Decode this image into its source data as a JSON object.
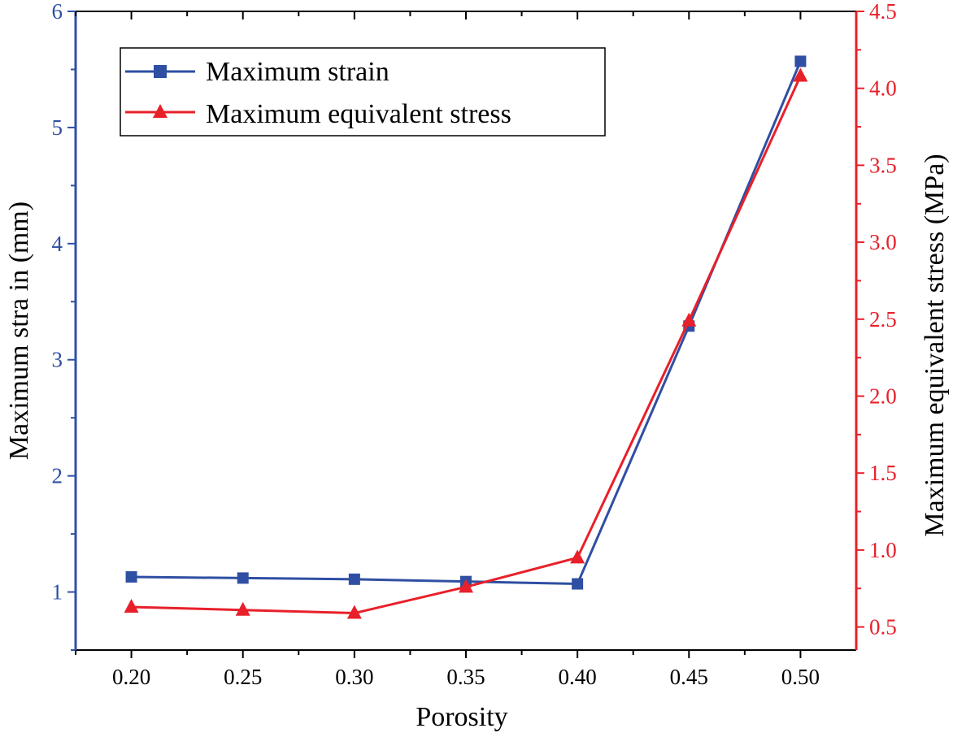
{
  "chart_data": {
    "type": "line",
    "x": [
      0.2,
      0.25,
      0.3,
      0.35,
      0.4,
      0.45,
      0.5
    ],
    "x_tick_labels": [
      "0.20",
      "0.25",
      "0.30",
      "0.35",
      "0.40",
      "0.45",
      "0.50"
    ],
    "xlabel": "Porosity",
    "xlim": [
      0.175,
      0.525
    ],
    "y_left": {
      "label": "Maximum stra in (mm)",
      "lim": [
        0.5,
        6
      ],
      "ticks": [
        1,
        2,
        3,
        4,
        5,
        6
      ],
      "tick_labels": [
        "1",
        "2",
        "3",
        "4",
        "5",
        "6"
      ],
      "color": "#2f4fa3"
    },
    "y_right": {
      "label": "Maximum equivalent stress (MPa)",
      "lim": [
        0.35,
        4.5
      ],
      "ticks": [
        0.5,
        1.0,
        1.5,
        2.0,
        2.5,
        3.0,
        3.5,
        4.0,
        4.5
      ],
      "tick_labels": [
        "0.5",
        "1.0",
        "1.5",
        "2.0",
        "2.5",
        "3.0",
        "3.5",
        "4.0",
        "4.5"
      ],
      "color": "#e8202a"
    },
    "series": [
      {
        "name": "Maximum strain",
        "axis": "left",
        "marker": "square",
        "color": "#2f4fa3",
        "values": [
          1.13,
          1.12,
          1.11,
          1.09,
          1.07,
          3.29,
          5.57
        ]
      },
      {
        "name": "Maximum equivalent stress",
        "axis": "right",
        "marker": "triangle",
        "color": "#e8202a",
        "values": [
          0.63,
          0.61,
          0.59,
          0.76,
          0.95,
          2.49,
          4.08
        ]
      }
    ],
    "legend_position": "top-left",
    "grid": false
  }
}
